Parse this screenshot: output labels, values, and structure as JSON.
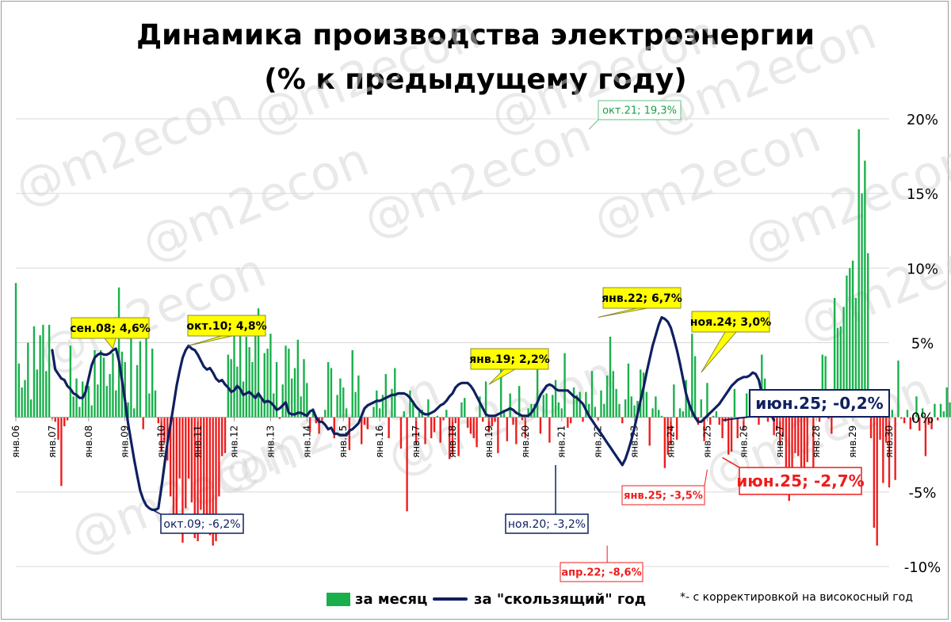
{
  "title_line1": "Динамика производства электроэнергии",
  "title_line2": "(% к предыдущему году)",
  "watermark": "@m2econ",
  "footnote": "*- с корректировкой на високосный год",
  "legend": {
    "monthly": "за месяц",
    "rolling": "за \"скользящий\" год"
  },
  "colors": {
    "positive_bar": "#19b04b",
    "negative_bar": "#ee1c1c",
    "rolling_line": "#0f2060",
    "callout_yellow": "#ffff00",
    "grid": "#d9d9d9"
  },
  "chart_data": {
    "type": "bar",
    "y_axis": {
      "min": -10,
      "max": 20,
      "step": 5,
      "tick_labels": [
        "-10%",
        "-5%",
        "0%",
        "5%",
        "10%",
        "15%",
        "20%"
      ],
      "position": "right"
    },
    "x_tick_labels": [
      "янв.06",
      "янв.07",
      "янв.08",
      "янв.09",
      "янв.10",
      "янв.11",
      "янв.12",
      "янв.13",
      "янв.14",
      "янв.15",
      "янв.16",
      "янв.17",
      "янв.18",
      "янв.19",
      "янв.20",
      "янв.21",
      "янв.22",
      "янв.23",
      "янв.24",
      "янв.25",
      "янв.26",
      "янв.27",
      "янв.28",
      "янв.29",
      "янв.30"
    ],
    "grid": true,
    "series": [
      {
        "name": "за месяц",
        "kind": "bar",
        "x_start": "2006-01",
        "frequency": "monthly",
        "values": [
          9.0,
          3.6,
          2.0,
          2.5,
          5.0,
          1.2,
          6.1,
          3.2,
          5.5,
          6.2,
          3.1,
          6.2,
          -0.1,
          -0.3,
          -1.5,
          -4.6,
          -0.6,
          -0.2,
          4.8,
          1.4,
          2.6,
          0.7,
          2.4,
          2.1,
          2.1,
          0.8,
          4.5,
          2.2,
          4.5,
          4.0,
          2.1,
          2.9,
          4.3,
          1.8,
          8.7,
          4.4,
          3.7,
          1.0,
          5.6,
          0.6,
          3.5,
          5.1,
          -0.8,
          5.3,
          1.6,
          4.6,
          1.8,
          -0.4,
          -2.3,
          -1.7,
          -2.9,
          -5.3,
          -7.2,
          -7.1,
          -4.1,
          -8.4,
          -6.1,
          -4.1,
          -5.7,
          -8.1,
          -8.3,
          -6.2,
          -6.9,
          -7.6,
          -7.9,
          -8.6,
          -8.3,
          -5.3,
          -2.6,
          -2.4,
          4.2,
          3.9,
          6.5,
          3.4,
          6.5,
          2.4,
          5.4,
          4.7,
          3.7,
          5.8,
          7.3,
          1.3,
          4.3,
          4.6,
          5.6,
          1.6,
          3.7,
          -0.1,
          2.2,
          4.8,
          4.6,
          2.6,
          3.3,
          5.2,
          1.4,
          3.9,
          2.3,
          -1.0,
          0.6,
          -0.4,
          -1.1,
          -0.2,
          0.5,
          3.7,
          3.3,
          -1.4,
          1.5,
          2.6,
          2.0,
          0.6,
          -2.2,
          4.5,
          1.7,
          2.8,
          -1.8,
          -0.5,
          -0.8,
          0.0,
          0.7,
          1.8,
          0.6,
          1.5,
          2.9,
          -1.4,
          1.9,
          3.3,
          0.0,
          -2.1,
          0.4,
          -6.3,
          1.8,
          1.1,
          -1.8,
          0.4,
          0.5,
          -1.8,
          1.2,
          -1.4,
          -1.0,
          0.1,
          -1.7,
          -0.2,
          0.5,
          -2.8,
          -2.5,
          -0.4,
          -2.6,
          1.0,
          1.3,
          -0.7,
          -1.1,
          -1.4,
          -2.0,
          1.4,
          -0.3,
          2.4,
          -1.0,
          -0.6,
          -0.3,
          -2.4,
          3.7,
          0.5,
          -1.6,
          1.6,
          -0.5,
          -1.8,
          2.1,
          -0.2,
          -1.4,
          0.6,
          0.9,
          0.9,
          4.3,
          -1.1,
          1.5,
          1.6,
          -1.7,
          1.5,
          2.5,
          1.0,
          0.6,
          4.3,
          -0.7,
          -0.4,
          2.0,
          1.5,
          1.7,
          -0.3,
          1.7,
          0.9,
          3.1,
          0.7,
          -0.2,
          1.8,
          0.9,
          2.8,
          5.4,
          3.1,
          1.9,
          0.9,
          -0.4,
          1.2,
          3.6,
          1.4,
          0.8,
          1.1,
          3.2,
          3.0,
          1.7,
          -1.9,
          0.6,
          1.4,
          0.5,
          0.1,
          -3.4,
          -2.5,
          -1.8,
          2.2,
          -1.5,
          0.6,
          0.4,
          2.5,
          1.1,
          5.6,
          4.1,
          -0.5,
          1.2,
          -1.6,
          2.3,
          -0.5,
          0.1,
          0.4,
          -0.5,
          -1.4,
          -0.3,
          -2.5,
          -2.3,
          1.9,
          -1.4,
          0.0,
          -0.8,
          1.6,
          1.8,
          0.7,
          0.7,
          -0.5,
          4.2,
          2.6,
          -0.3,
          0.1,
          -1.2,
          -0.9,
          -1.9,
          -1.3,
          -5.2,
          -5.6,
          -3.7,
          -2.4,
          -2.6,
          -4.1,
          -4.6,
          -3.0,
          0.4,
          -3.7,
          1.2,
          -0.3,
          4.2,
          4.1,
          -0.1,
          -1.1,
          8.0,
          6.0,
          6.1,
          7.4,
          9.5,
          10.0,
          10.5,
          8.0,
          19.3,
          15.0,
          17.2,
          11.0,
          -1.4,
          -7.4,
          -8.6,
          -1.5,
          -4.4,
          -1.7,
          -4.7,
          0.5,
          -4.2,
          3.8,
          -0.1,
          -0.4,
          0.5,
          -0.8,
          -0.2,
          1.4,
          -0.9,
          0.6,
          -2.6,
          -0.5,
          -0.8,
          0.9,
          -0.2,
          0.9,
          0.4,
          2.0,
          1.0,
          2.9,
          0.6,
          2.0,
          1.3,
          1.1,
          1.0,
          2.6,
          1.9,
          2.1,
          3.4,
          2.0,
          4.5,
          1.8,
          6.1,
          2.9,
          -0.5,
          3.4,
          4.5,
          -0.3,
          3.1,
          -1.6,
          -2.1,
          -3.5,
          -1.5,
          1.0,
          -0.8,
          -1.1,
          -1.4,
          -2.7
        ]
      },
      {
        "name": "за \"скользящий\" год",
        "kind": "line",
        "x_start": "2007-01",
        "frequency": "monthly",
        "values": [
          4.5,
          3.2,
          2.9,
          2.6,
          2.5,
          2.1,
          1.9,
          1.6,
          1.5,
          1.3,
          1.3,
          1.7,
          2.6,
          3.5,
          4.0,
          4.2,
          4.3,
          4.2,
          4.2,
          4.3,
          4.5,
          4.6,
          3.8,
          2.5,
          1.1,
          -0.4,
          -1.6,
          -2.8,
          -3.9,
          -4.9,
          -5.5,
          -5.9,
          -6.1,
          -6.2,
          -6.2,
          -6.1,
          -4.7,
          -3.2,
          -1.7,
          -0.5,
          0.8,
          2.1,
          3.1,
          4.0,
          4.5,
          4.8,
          4.6,
          4.5,
          4.2,
          3.8,
          3.4,
          3.2,
          3.3,
          3.0,
          2.6,
          2.4,
          2.5,
          2.2,
          2.0,
          1.7,
          1.8,
          2.1,
          1.9,
          1.5,
          1.6,
          1.7,
          1.5,
          1.3,
          1.6,
          1.3,
          1.0,
          1.1,
          1.0,
          0.8,
          0.5,
          0.6,
          0.8,
          1.0,
          0.3,
          0.2,
          0.2,
          0.3,
          0.3,
          0.2,
          0.1,
          0.4,
          0.5,
          0.0,
          -0.3,
          -0.3,
          -0.5,
          -0.8,
          -0.7,
          -1.1,
          -1.1,
          -1.2,
          -1.2,
          -1.2,
          -0.9,
          -0.8,
          -0.6,
          -0.4,
          0.1,
          0.6,
          0.8,
          0.9,
          1.0,
          1.1,
          1.1,
          1.2,
          1.3,
          1.4,
          1.5,
          1.5,
          1.6,
          1.6,
          1.6,
          1.5,
          1.3,
          1.0,
          0.7,
          0.5,
          0.3,
          0.2,
          0.2,
          0.3,
          0.4,
          0.6,
          0.8,
          0.9,
          1.1,
          1.4,
          1.6,
          2.0,
          2.2,
          2.3,
          2.3,
          2.3,
          2.1,
          1.8,
          1.4,
          1.0,
          0.6,
          0.2,
          0.1,
          0.1,
          0.1,
          0.2,
          0.3,
          0.4,
          0.5,
          0.6,
          0.5,
          0.3,
          0.2,
          0.1,
          0.1,
          0.1,
          0.3,
          0.6,
          1.0,
          1.5,
          1.8,
          2.1,
          2.2,
          2.1,
          1.9,
          1.8,
          1.8,
          1.8,
          1.8,
          1.6,
          1.4,
          1.3,
          1.1,
          0.9,
          0.5,
          0.1,
          -0.2,
          -0.5,
          -0.8,
          -1.1,
          -1.4,
          -1.7,
          -2.0,
          -2.3,
          -2.6,
          -2.9,
          -3.2,
          -2.8,
          -2.2,
          -1.5,
          -0.7,
          0.2,
          1.1,
          2.0,
          3.0,
          3.9,
          4.8,
          5.5,
          6.2,
          6.7,
          6.6,
          6.4,
          6.0,
          5.3,
          4.5,
          3.6,
          2.6,
          1.6,
          0.9,
          0.4,
          0.0,
          -0.3,
          -0.3,
          -0.1,
          0.1,
          0.3,
          0.5,
          0.7,
          0.9,
          1.2,
          1.5,
          1.8,
          2.1,
          2.3,
          2.5,
          2.6,
          2.7,
          2.7,
          2.8,
          3.0,
          2.9,
          2.5,
          1.6,
          0.7,
          0.4,
          0.2,
          -0.2
        ]
      }
    ],
    "annotations": [
      {
        "label": "сен.08; 4,6%",
        "series": "за \"скользящий\" год",
        "x": "2008-09",
        "y": 4.6,
        "style": "yellow"
      },
      {
        "label": "окт.10; 4,8%",
        "series": "за \"скользящий\" год",
        "x": "2010-10",
        "y": 4.8,
        "style": "yellow"
      },
      {
        "label": "янв.19; 2,2%",
        "series": "за \"скользящий\" год",
        "x": "2019-01",
        "y": 2.2,
        "style": "yellow"
      },
      {
        "label": "янв.22; 6,7%",
        "series": "за \"скользящий\" год",
        "x": "2022-01",
        "y": 6.7,
        "style": "yellow"
      },
      {
        "label": "ноя.24; 3,0%",
        "series": "за \"скользящий\" год",
        "x": "2024-11",
        "y": 3.0,
        "style": "yellow"
      },
      {
        "label": "окт.09; -6,2%",
        "series": "за \"скользящий\" год",
        "x": "2009-10",
        "y": -6.2,
        "style": "navy"
      },
      {
        "label": "ноя.20; -3,2%",
        "series": "за \"скользящий\" год",
        "x": "2020-11",
        "y": -3.2,
        "style": "navy"
      },
      {
        "label": "июн.25; -0,2%",
        "series": "за \"скользящий\" год",
        "x": "2025-06",
        "y": -0.2,
        "style": "navy-big"
      },
      {
        "label": "окт.21; 19,3%",
        "series": "за месяц",
        "x": "2021-10",
        "y": 19.3,
        "style": "green"
      },
      {
        "label": "апр.22; -8,6%",
        "series": "за месяц",
        "x": "2022-04",
        "y": -8.6,
        "style": "red"
      },
      {
        "label": "янв.25; -3,5%",
        "series": "за месяц",
        "x": "2025-01",
        "y": -3.5,
        "style": "red"
      },
      {
        "label": "июн.25; -2,7%",
        "series": "за месяц",
        "x": "2025-06",
        "y": -2.7,
        "style": "red-big"
      }
    ]
  }
}
